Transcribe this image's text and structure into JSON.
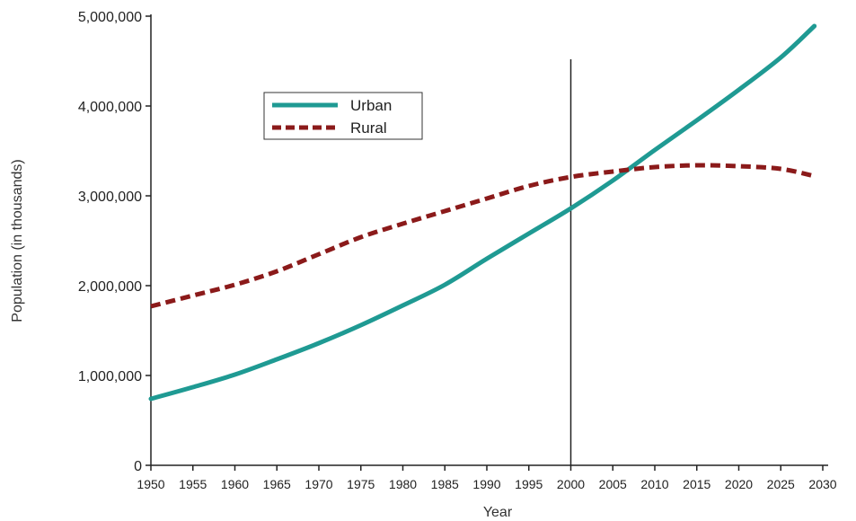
{
  "chart_data": {
    "type": "line",
    "xlabel": "Year",
    "ylabel": "Population (in thousands)",
    "xlim": [
      1950,
      2030
    ],
    "ylim": [
      0,
      5000000
    ],
    "x": [
      1950,
      1955,
      1960,
      1965,
      1970,
      1975,
      1980,
      1985,
      1990,
      1995,
      2000,
      2005,
      2010,
      2015,
      2020,
      2025,
      2030
    ],
    "x_tick_labels": [
      "1950",
      "1955",
      "1960",
      "1965",
      "1970",
      "1975",
      "1980",
      "1985",
      "1990",
      "1995",
      "2000",
      "2005",
      "2010",
      "2015",
      "2020",
      "2025",
      "2030"
    ],
    "y_ticks": [
      0,
      1000000,
      2000000,
      3000000,
      4000000,
      5000000
    ],
    "y_tick_labels": [
      "0",
      "1,000,000",
      "2,000,000",
      "3,000,000",
      "4,000,000",
      "5,000,000"
    ],
    "series": [
      {
        "name": "Urban",
        "color": "#1f9a93",
        "style": "solid",
        "x": [
          1950,
          1955,
          1960,
          1965,
          1970,
          1975,
          1980,
          1985,
          1990,
          1995,
          2000,
          2005,
          2010,
          2015,
          2020,
          2025,
          2029
        ],
        "values": [
          740000,
          870000,
          1010000,
          1180000,
          1360000,
          1560000,
          1780000,
          2010000,
          2300000,
          2580000,
          2860000,
          3170000,
          3510000,
          3840000,
          4180000,
          4540000,
          4890000
        ]
      },
      {
        "name": "Rural",
        "color": "#8b1a1a",
        "style": "dashed",
        "x": [
          1950,
          1955,
          1960,
          1965,
          1970,
          1975,
          1980,
          1985,
          1990,
          1995,
          2000,
          2005,
          2010,
          2015,
          2020,
          2025,
          2029
        ],
        "values": [
          1770000,
          1890000,
          2010000,
          2160000,
          2350000,
          2540000,
          2690000,
          2830000,
          2970000,
          3110000,
          3210000,
          3270000,
          3320000,
          3340000,
          3330000,
          3300000,
          3220000
        ]
      }
    ],
    "reference_line_x": 2000,
    "legend_position": "upper-left",
    "grid": false
  }
}
